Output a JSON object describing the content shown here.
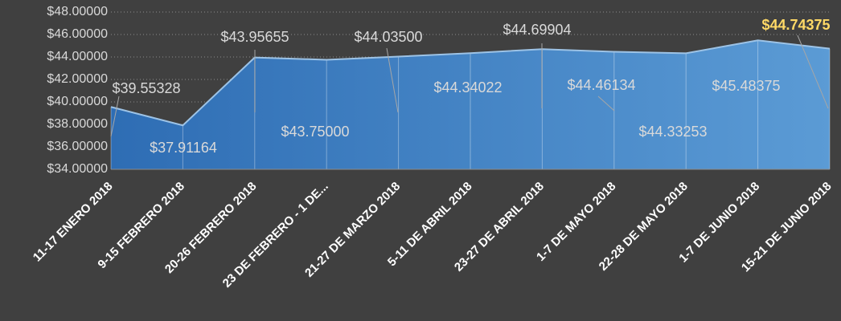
{
  "chart_data": {
    "type": "area",
    "categories": [
      "11-17 ENERO 2018",
      "9-15 FEBRERO 2018",
      "20-26 FEBRERO 2018",
      "23 DE FEBRERO - 1 DE...",
      "21-27 DE MARZO 2018",
      "5-11 DE ABRIL 2018",
      "23-27 DE ABRIL 2018",
      "1-7 DE MAYO 2018",
      "22-28 DE MAYO 2018",
      "1-7 DE JUNIO 2018",
      "15-21 DE JUNIO 2018"
    ],
    "values": [
      39.55328,
      37.91164,
      43.95655,
      43.75,
      44.035,
      44.34022,
      44.69904,
      44.46134,
      44.33253,
      45.48375,
      44.74375
    ],
    "value_labels": [
      "$39.55328",
      "$37.91164",
      "$43.95655",
      "$43.75000",
      "$44.03500",
      "$44.34022",
      "$44.69904",
      "$44.46134",
      "$44.33253",
      "$45.48375",
      "$44.74375"
    ],
    "color": "#5b9bd5",
    "ylim": [
      34,
      48
    ],
    "yticks": [
      {
        "value": 34,
        "label": "$34.00000"
      },
      {
        "value": 36,
        "label": "$36.00000"
      },
      {
        "value": 38,
        "label": "$38.00000"
      },
      {
        "value": 40,
        "label": "$40.00000"
      },
      {
        "value": 42,
        "label": "$42.00000"
      },
      {
        "value": 44,
        "label": "$44.00000"
      },
      {
        "value": 46,
        "label": "$46.00000"
      },
      {
        "value": 48,
        "label": "$48.00000"
      }
    ],
    "grid": true
  }
}
